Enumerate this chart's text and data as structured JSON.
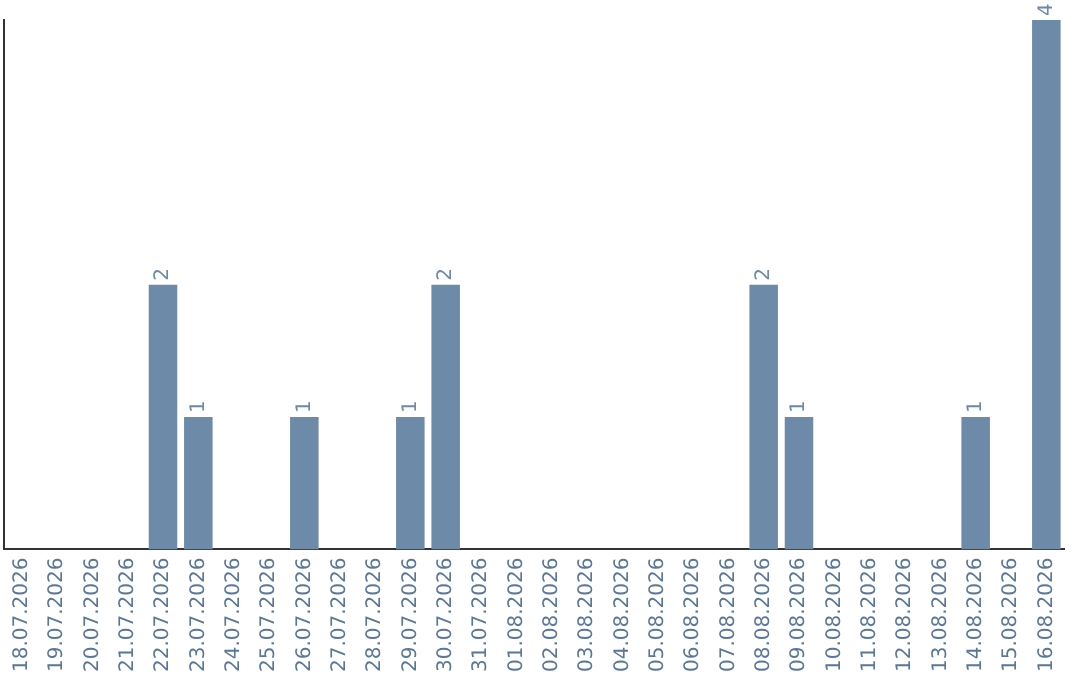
{
  "chart_data": {
    "type": "bar",
    "categories": [
      "18.07.2026",
      "19.07.2026",
      "20.07.2026",
      "21.07.2026",
      "22.07.2026",
      "23.07.2026",
      "24.07.2026",
      "25.07.2026",
      "26.07.2026",
      "27.07.2026",
      "28.07.2026",
      "29.07.2026",
      "30.07.2026",
      "31.07.2026",
      "01.08.2026",
      "02.08.2026",
      "03.08.2026",
      "04.08.2026",
      "05.08.2026",
      "06.08.2026",
      "07.08.2026",
      "08.08.2026",
      "09.08.2026",
      "10.08.2026",
      "11.08.2026",
      "12.08.2026",
      "13.08.2026",
      "14.08.2026",
      "15.08.2026",
      "16.08.2026"
    ],
    "values": [
      0,
      0,
      0,
      0,
      2,
      1,
      0,
      0,
      1,
      0,
      0,
      1,
      2,
      0,
      0,
      0,
      0,
      0,
      0,
      0,
      0,
      2,
      1,
      0,
      0,
      0,
      0,
      1,
      0,
      4
    ],
    "value_labels": [
      null,
      null,
      null,
      null,
      "2",
      "1",
      null,
      null,
      "1",
      null,
      null,
      "1",
      "2",
      null,
      null,
      null,
      null,
      null,
      null,
      null,
      null,
      "2",
      "1",
      null,
      null,
      null,
      null,
      "1",
      null,
      "4"
    ],
    "color": "#6d8aa8",
    "grid": false,
    "legend": false,
    "tick_labels": "x"
  }
}
